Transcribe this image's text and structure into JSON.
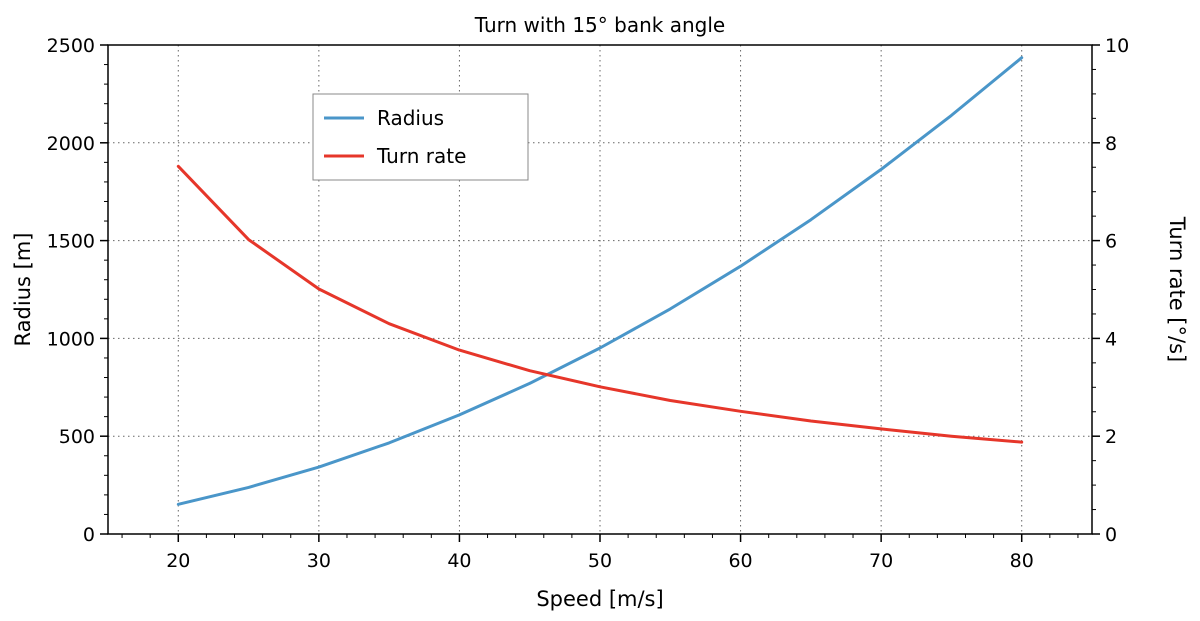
{
  "chart_data": {
    "type": "line",
    "title": "Turn with 15° bank angle",
    "xlabel": "Speed [m/s]",
    "ylabel": "Radius [m]",
    "y2label": "Turn rate [°/s]",
    "xlim": [
      15,
      85
    ],
    "ylim": [
      0,
      2500
    ],
    "y2lim": [
      0,
      10
    ],
    "xticks": [
      "20",
      "30",
      "40",
      "50",
      "60",
      "70",
      "80"
    ],
    "yticks": [
      "0",
      "500",
      "1000",
      "1500",
      "2000",
      "2500"
    ],
    "y2ticks": [
      "0",
      "2",
      "4",
      "6",
      "8",
      "10"
    ],
    "grid": true,
    "legend_position": "upper-center-left",
    "x": [
      20,
      25,
      30,
      35,
      40,
      45,
      50,
      55,
      60,
      65,
      70,
      75,
      80
    ],
    "series": [
      {
        "name": "Radius",
        "axis": "left",
        "color": "#4a96c9",
        "values": [
          152,
          238,
          342,
          466,
          609,
          770,
          951,
          1151,
          1369,
          1607,
          1864,
          2140,
          2435
        ]
      },
      {
        "name": "Turn rate",
        "axis": "right",
        "color": "#e6362a",
        "values": [
          7.52,
          6.02,
          5.01,
          4.3,
          3.76,
          3.34,
          3.01,
          2.73,
          2.51,
          2.31,
          2.15,
          2.0,
          1.88
        ]
      }
    ]
  }
}
